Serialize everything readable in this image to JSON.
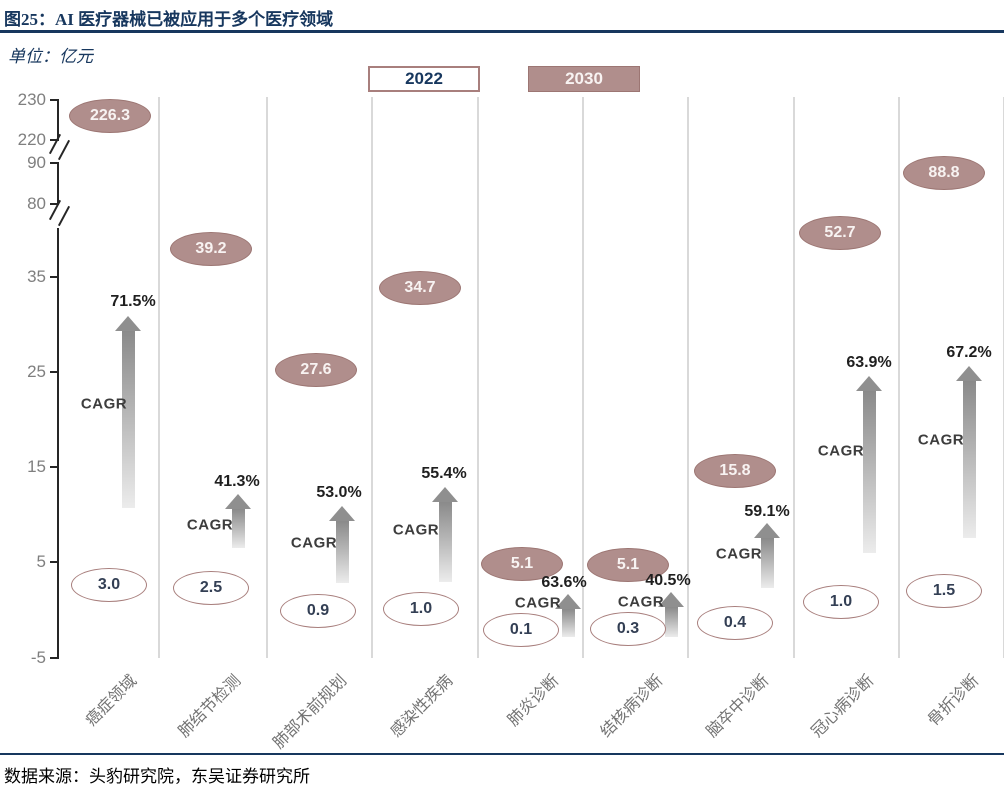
{
  "figure": {
    "title": "图25：AI 医疗器械已被应用于多个医疗领域",
    "unit": "单位：亿元",
    "source": "数据来源：头豹研究院，东吴证券研究所"
  },
  "legend": [
    {
      "label": "2022",
      "style": "outline"
    },
    {
      "label": "2030",
      "style": "filled"
    }
  ],
  "colors": {
    "navy": "#17375E",
    "mauve_fill": "#B08E8C",
    "mauve_border": "#9C7673",
    "outline_border": "#A87F7D",
    "arrow_gray": "#8F8F8F",
    "axis_text": "#7F7F7F",
    "gridline": "#D9D9D9"
  },
  "chart_data": {
    "type": "scatter",
    "title": "AI 医疗器械已被应用于多个医疗领域",
    "unit": "亿元",
    "legend_position": "top",
    "grid": "vertical",
    "categories": [
      "癌症领域",
      "肺结节检测",
      "肺部术前规划",
      "感染性疾病",
      "肺炎诊断",
      "结核病诊断",
      "脑卒中诊断",
      "冠心病诊断",
      "骨折诊断"
    ],
    "series": [
      {
        "name": "2022",
        "values": [
          3.0,
          2.5,
          0.9,
          1.0,
          0.1,
          0.3,
          0.4,
          1.0,
          1.5
        ]
      },
      {
        "name": "2030",
        "values": [
          226.3,
          39.2,
          27.6,
          34.7,
          5.1,
          5.1,
          15.8,
          52.7,
          88.8
        ]
      }
    ],
    "cagr_label": "CAGR",
    "cagr_percent": [
      "71.5%",
      "41.3%",
      "53.0%",
      "55.4%",
      "63.6%",
      "40.5%",
      "59.1%",
      "63.9%",
      "67.2%"
    ],
    "y_ticks": [
      230,
      220,
      90,
      80,
      35,
      25,
      15,
      5,
      -5
    ],
    "y_axis_breaks": [
      [
        220,
        90
      ],
      [
        80,
        40
      ]
    ]
  }
}
